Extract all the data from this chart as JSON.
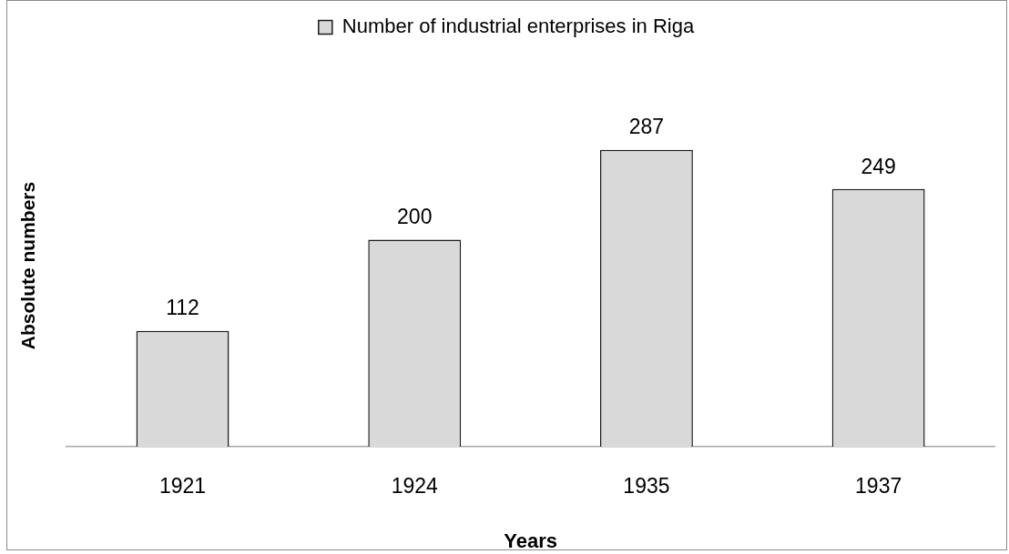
{
  "chart_data": {
    "type": "bar",
    "xlabel": "Years",
    "ylabel": "Absolute numbers",
    "categories": [
      "1921",
      "1924",
      "1935",
      "1937"
    ],
    "series": [
      {
        "name": "Number of industrial enterprises in Riga",
        "color": "#d9d9d9",
        "values": [
          112,
          200,
          287,
          249
        ]
      }
    ],
    "data_labels": true,
    "legend": "top",
    "grid": false,
    "tick_labels": "x"
  }
}
